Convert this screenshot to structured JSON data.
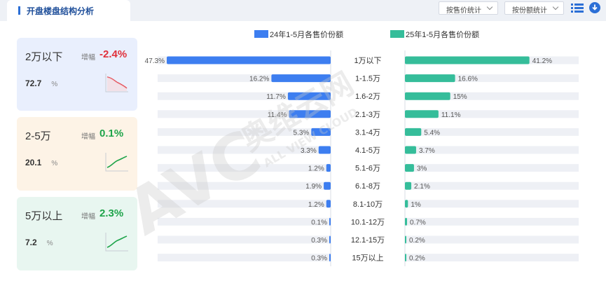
{
  "tab": {
    "title": "开盘楼盘结构分析"
  },
  "toolbar": {
    "select1": "按售价统计",
    "select2": "按份额统计"
  },
  "legend": {
    "series1": "24年1-5月各售价份额",
    "series2": "25年1-5月各售价份额"
  },
  "cards": [
    {
      "label": "2万以下",
      "inc_label": "增幅",
      "change": "-2.4%",
      "share": "72.7",
      "unit": "%",
      "trend": "down",
      "color": "#e0303a",
      "bg": "#e9effd"
    },
    {
      "label": "2-5万",
      "inc_label": "增幅",
      "change": "0.1%",
      "share": "20.1",
      "unit": "%",
      "trend": "up",
      "color": "#1ea44a",
      "bg": "#fdf3e6"
    },
    {
      "label": "5万以上",
      "inc_label": "增幅",
      "change": "2.3%",
      "share": "7.2",
      "unit": "%",
      "trend": "up",
      "color": "#1ea44a",
      "bg": "#e8f6f0"
    }
  ],
  "colors": {
    "series1": "#3d7ef0",
    "series2": "#35bd9a",
    "track": "#eef0f5"
  },
  "watermark": {
    "brand": "AVC",
    "cn": "奥维云网",
    "en": "ALL VIEW CLOUD"
  },
  "chart_data": {
    "type": "bar",
    "orientation": "horizontal-butterfly",
    "categories": [
      "1万以下",
      "1-1.5万",
      "1.6-2万",
      "2.1-3万",
      "3.1-4万",
      "4.1-5万",
      "5.1-6万",
      "6.1-8万",
      "8.1-10万",
      "10.1-12万",
      "12.1-15万",
      "15万以上"
    ],
    "series": [
      {
        "name": "24年1-5月各售价份额",
        "values": [
          47.3,
          16.2,
          11.7,
          11.4,
          5.3,
          3.3,
          1.2,
          1.9,
          1.2,
          0.1,
          0.3,
          0.3
        ]
      },
      {
        "name": "25年1-5月各售价份额",
        "values": [
          41.2,
          16.6,
          15.0,
          11.1,
          5.4,
          3.7,
          3.0,
          2.1,
          1.0,
          0.7,
          0.2,
          0.2
        ]
      }
    ],
    "value_unit": "%",
    "legend_position": "top"
  }
}
